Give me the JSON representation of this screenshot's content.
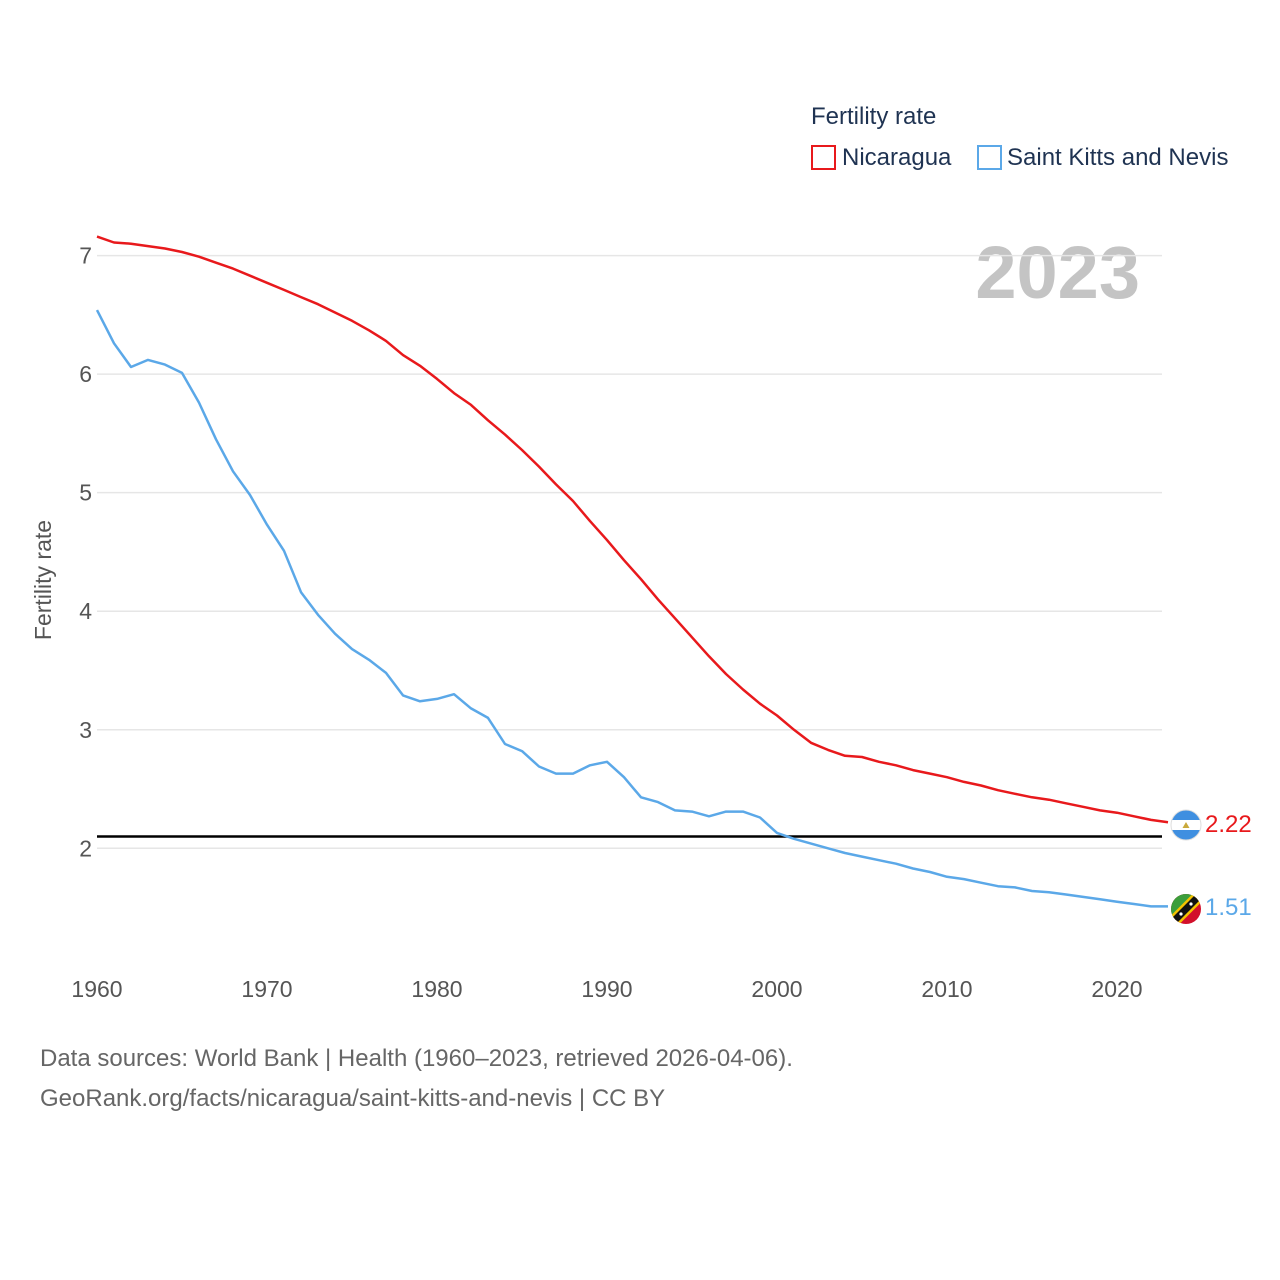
{
  "chart_data": {
    "type": "line",
    "legend_title": "Fertility rate",
    "ylabel": "Fertility rate",
    "year_label": "2023",
    "xlim": [
      1960,
      2023
    ],
    "ylim": [
      1.1,
      7.3
    ],
    "x_ticks": [
      "1960",
      "1970",
      "1980",
      "1990",
      "2000",
      "2010",
      "2020"
    ],
    "y_ticks": [
      "2",
      "3",
      "4",
      "5",
      "6",
      "7"
    ],
    "reference_line": 2.1,
    "x": [
      1960,
      1961,
      1962,
      1963,
      1964,
      1965,
      1966,
      1967,
      1968,
      1969,
      1970,
      1971,
      1972,
      1973,
      1974,
      1975,
      1976,
      1977,
      1978,
      1979,
      1980,
      1981,
      1982,
      1983,
      1984,
      1985,
      1986,
      1987,
      1988,
      1989,
      1990,
      1991,
      1992,
      1993,
      1994,
      1995,
      1996,
      1997,
      1998,
      1999,
      2000,
      2001,
      2002,
      2003,
      2004,
      2005,
      2006,
      2007,
      2008,
      2009,
      2010,
      2011,
      2012,
      2013,
      2014,
      2015,
      2016,
      2017,
      2018,
      2019,
      2020,
      2021,
      2022,
      2023
    ],
    "series": [
      {
        "name": "Nicaragua",
        "color": "#e8191c",
        "end_label": "2.22",
        "values": [
          7.16,
          7.11,
          7.1,
          7.08,
          7.06,
          7.03,
          6.99,
          6.94,
          6.89,
          6.83,
          6.77,
          6.71,
          6.65,
          6.59,
          6.52,
          6.45,
          6.37,
          6.28,
          6.16,
          6.07,
          5.96,
          5.84,
          5.74,
          5.61,
          5.49,
          5.36,
          5.22,
          5.07,
          4.93,
          4.76,
          4.6,
          4.43,
          4.27,
          4.1,
          3.94,
          3.78,
          3.62,
          3.47,
          3.34,
          3.22,
          3.12,
          3.0,
          2.89,
          2.83,
          2.78,
          2.77,
          2.73,
          2.7,
          2.66,
          2.63,
          2.6,
          2.56,
          2.53,
          2.49,
          2.46,
          2.43,
          2.41,
          2.38,
          2.35,
          2.32,
          2.3,
          2.27,
          2.24,
          2.22
        ]
      },
      {
        "name": "Saint Kitts and Nevis",
        "color": "#5ba8e8",
        "end_label": "1.51",
        "values": [
          6.54,
          6.26,
          6.06,
          6.12,
          6.08,
          6.01,
          5.76,
          5.45,
          5.18,
          4.98,
          4.73,
          4.51,
          4.16,
          3.97,
          3.81,
          3.68,
          3.59,
          3.48,
          3.29,
          3.24,
          3.26,
          3.3,
          3.18,
          3.1,
          2.88,
          2.82,
          2.69,
          2.63,
          2.63,
          2.7,
          2.73,
          2.6,
          2.43,
          2.39,
          2.32,
          2.31,
          2.27,
          2.31,
          2.31,
          2.26,
          2.13,
          2.08,
          2.04,
          2.0,
          1.96,
          1.93,
          1.9,
          1.87,
          1.83,
          1.8,
          1.76,
          1.74,
          1.71,
          1.68,
          1.67,
          1.64,
          1.63,
          1.61,
          1.59,
          1.57,
          1.55,
          1.53,
          1.51,
          1.51
        ]
      }
    ]
  },
  "footer": {
    "line1": "Data sources: World Bank | Health (1960–2023, retrieved 2026-04-06).",
    "line2": "GeoRank.org/facts/nicaragua/saint-kitts-and-nevis | CC BY"
  }
}
